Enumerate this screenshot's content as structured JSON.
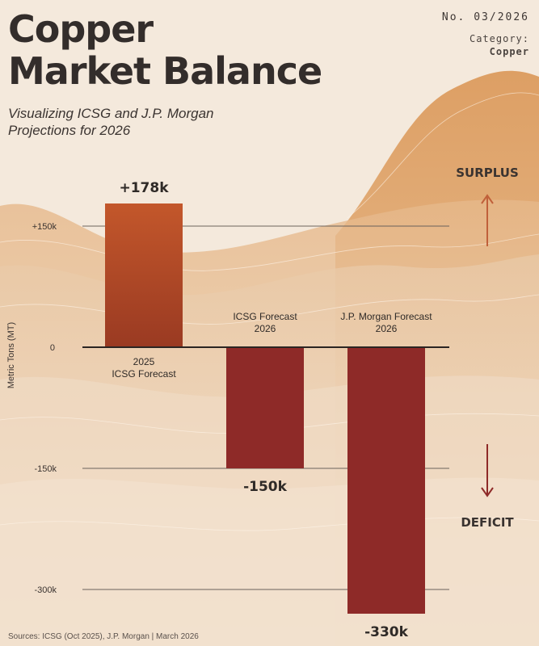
{
  "header": {
    "title_line1": "Copper",
    "title_line2": "Market Balance",
    "subtitle_line1": "Visualizing ICSG and J.P. Morgan",
    "subtitle_line2": "Projections for 2026",
    "issue": "No. 03/2026",
    "category_label": "Category:",
    "category_value": "Copper"
  },
  "footer": {
    "source": "Sources: ICSG (Oct 2025), J.P. Morgan | March 2026"
  },
  "colors": {
    "background": "#f4e9dc",
    "bar_surplus": "#c3572b",
    "bar_deficit": "#8e2a28",
    "text_dark": "#2f2a27"
  },
  "chart_data": {
    "type": "bar",
    "categories": [
      [
        "2025",
        "ICSG Forecast"
      ],
      [
        "ICSG Forecast",
        "2026"
      ],
      [
        "J.P. Morgan Forecast",
        "2026"
      ]
    ],
    "values": [
      178,
      -150,
      -330
    ],
    "value_labels": [
      "+178k",
      "-150k",
      "-330k"
    ],
    "ylabel": "Metric Tons (MT)",
    "yticks": [
      150,
      0,
      -150,
      -300
    ],
    "ytick_labels": [
      "+150k",
      "0",
      "-150k",
      "-300k"
    ],
    "ylim": [
      -330,
      178
    ],
    "annotations": {
      "surplus": "SURPLUS",
      "deficit": "DEFICIT"
    },
    "grid": true
  }
}
